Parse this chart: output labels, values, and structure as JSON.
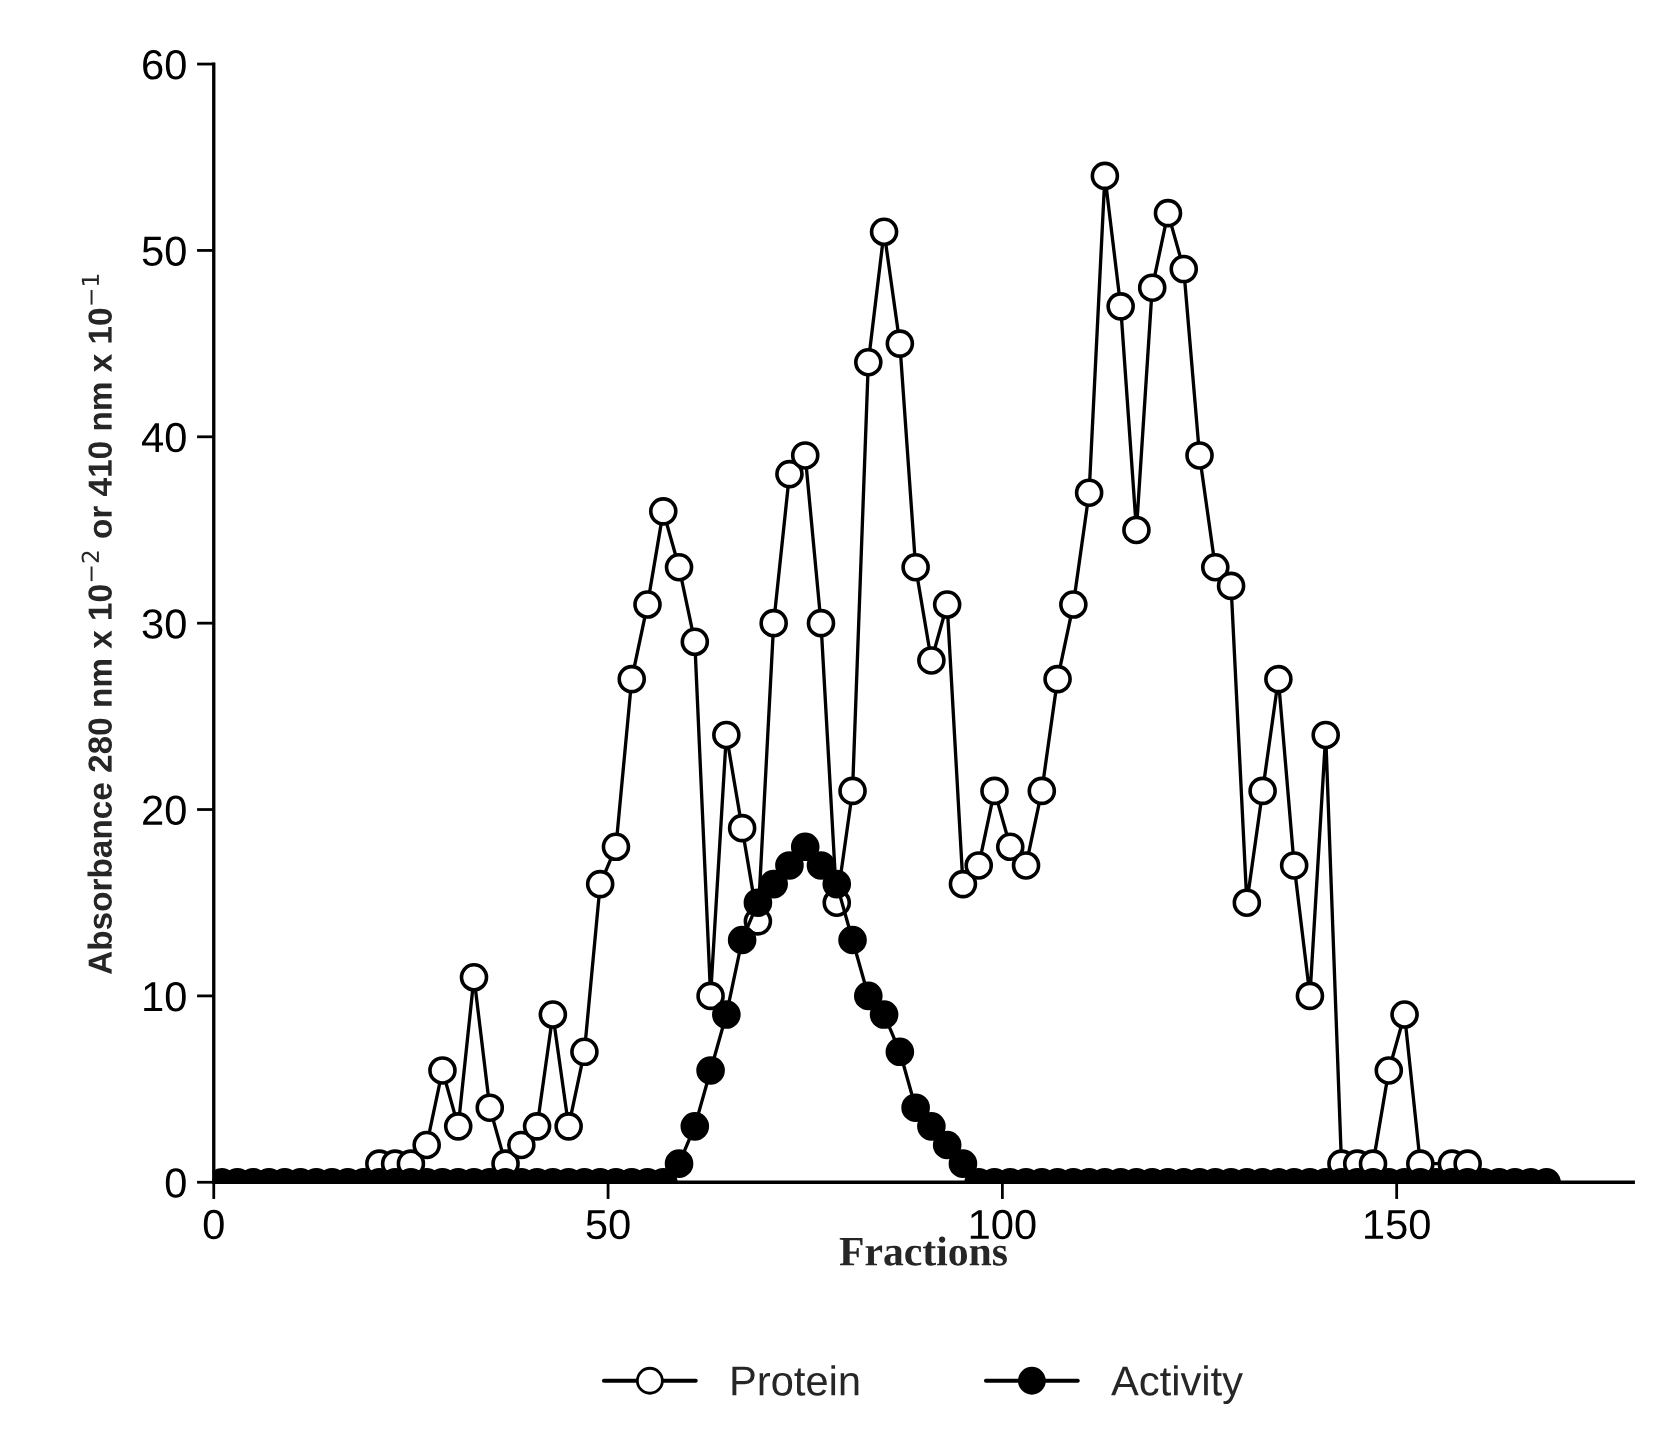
{
  "chart_data": {
    "type": "line",
    "xlabel": "Fractions",
    "ylabel": "Absorbance 280 nm x 10$^{−2}$ or 410 nm x 10$^{−1}$",
    "xlim": [
      0,
      180
    ],
    "xticks": [
      0,
      50,
      100,
      150
    ],
    "ylim": [
      0,
      60
    ],
    "yticks": [
      0,
      10,
      20,
      30,
      40,
      50,
      60
    ],
    "grid": false,
    "legend": "bottom",
    "marker": "circle",
    "line_style": "solid",
    "series": [
      {
        "name": "Protein",
        "color": "#ffffff",
        "x": [
          21,
          23,
          25,
          27,
          29,
          31,
          33,
          35,
          37,
          39,
          41,
          43,
          45,
          47,
          49,
          51,
          53,
          55,
          57,
          59,
          61,
          63,
          65,
          67,
          69,
          71,
          73,
          75,
          77,
          79,
          81,
          83,
          85,
          87,
          89,
          91,
          93,
          95,
          97,
          99,
          101,
          103,
          105,
          107,
          109,
          111,
          113,
          115,
          117,
          119,
          121,
          123,
          125,
          127,
          129,
          131,
          133,
          135,
          137,
          139,
          141,
          143,
          145,
          147,
          149,
          151,
          153,
          157,
          159
        ],
        "values": [
          1,
          1,
          1,
          2,
          6,
          3,
          11,
          4,
          1,
          2,
          3,
          9,
          3,
          7,
          16,
          18,
          27,
          31,
          36,
          33,
          29,
          10,
          24,
          19,
          14,
          30,
          38,
          39,
          30,
          15,
          21,
          44,
          51,
          45,
          33,
          28,
          31,
          16,
          17,
          21,
          18,
          17,
          21,
          27,
          31,
          37,
          54,
          47,
          35,
          48,
          52,
          49,
          39,
          33,
          32,
          15,
          21,
          27,
          17,
          10,
          24,
          1,
          1,
          1,
          6,
          9,
          1,
          1,
          1
        ]
      },
      {
        "name": "Activity",
        "color": "#000000",
        "x": [
          1,
          3,
          5,
          7,
          9,
          11,
          13,
          15,
          17,
          19,
          21,
          23,
          25,
          27,
          29,
          31,
          33,
          35,
          37,
          39,
          41,
          43,
          45,
          47,
          49,
          51,
          53,
          55,
          57,
          59,
          61,
          63,
          65,
          67,
          69,
          71,
          73,
          75,
          77,
          79,
          81,
          83,
          85,
          87,
          89,
          91,
          93,
          95,
          97,
          99,
          101,
          103,
          105,
          107,
          109,
          111,
          113,
          115,
          117,
          119,
          121,
          123,
          125,
          127,
          129,
          131,
          133,
          135,
          137,
          139,
          141,
          143,
          145,
          147,
          149,
          151,
          153,
          155,
          157,
          159,
          161,
          163,
          165,
          167,
          169
        ],
        "values": [
          0,
          0,
          0,
          0,
          0,
          0,
          0,
          0,
          0,
          0,
          0,
          0,
          0,
          0,
          0,
          0,
          0,
          0,
          0,
          0,
          0,
          0,
          0,
          0,
          0,
          0,
          0,
          0,
          0,
          1,
          3,
          6,
          9,
          13,
          15,
          16,
          17,
          18,
          17,
          16,
          13,
          10,
          9,
          7,
          4,
          3,
          2,
          1,
          0,
          0,
          0,
          0,
          0,
          0,
          0,
          0,
          0,
          0,
          0,
          0,
          0,
          0,
          0,
          0,
          0,
          0,
          0,
          0,
          0,
          0,
          0,
          0,
          0,
          0,
          0,
          0,
          0,
          0,
          0,
          0,
          0,
          0,
          0,
          0,
          0
        ]
      }
    ]
  }
}
